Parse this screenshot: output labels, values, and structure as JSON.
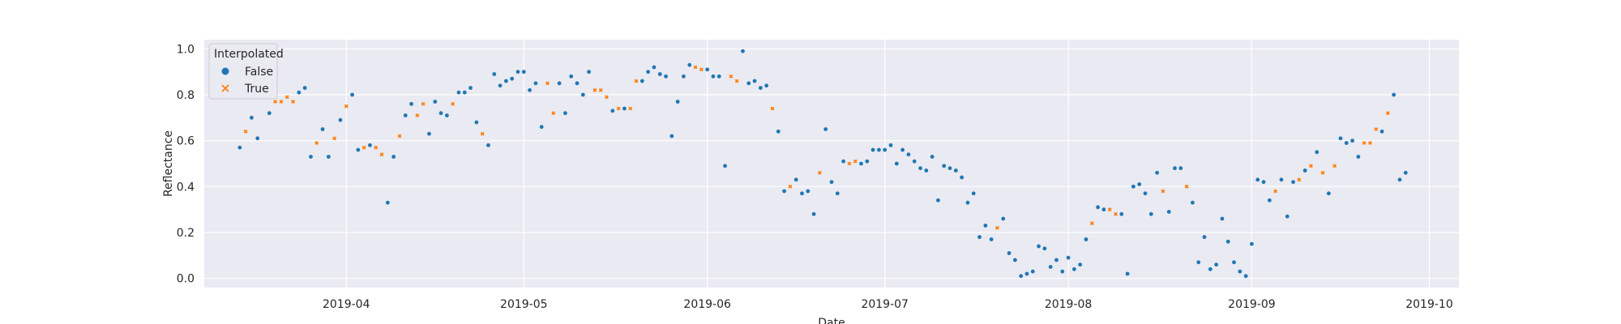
{
  "chart_data": {
    "type": "scatter",
    "xlabel": "Date",
    "ylabel": "Reflectance",
    "xlim": [
      "2019-03-08",
      "2019-10-06"
    ],
    "ylim": [
      -0.04,
      1.04
    ],
    "x_ticks": [
      "2019-04-01",
      "2019-05-01",
      "2019-06-01",
      "2019-07-01",
      "2019-08-01",
      "2019-09-01",
      "2019-10-01"
    ],
    "x_tick_labels": [
      "2019-04",
      "2019-05",
      "2019-06",
      "2019-07",
      "2019-08",
      "2019-09",
      "2019-10"
    ],
    "y_ticks": [
      0.0,
      0.2,
      0.4,
      0.6,
      0.8,
      1.0
    ],
    "y_tick_labels": [
      "0.0",
      "0.2",
      "0.4",
      "0.6",
      "0.8",
      "1.0"
    ],
    "grid": true,
    "legend": {
      "title": "Interpolated",
      "placement": "top-left",
      "entries": [
        {
          "label": "False",
          "marker": "circle",
          "color": "#1f77b4"
        },
        {
          "label": "True",
          "marker": "x",
          "color": "#ff7f0e"
        }
      ]
    },
    "series": [
      {
        "name": "False",
        "color": "#1f77b4",
        "marker": "circle",
        "points": [
          [
            "2019-03-14",
            0.57
          ],
          [
            "2019-03-16",
            0.7
          ],
          [
            "2019-03-17",
            0.61
          ],
          [
            "2019-03-18",
            0.8
          ],
          [
            "2019-03-19",
            0.72
          ],
          [
            "2019-03-24",
            0.81
          ],
          [
            "2019-03-25",
            0.83
          ],
          [
            "2019-03-26",
            0.53
          ],
          [
            "2019-03-28",
            0.65
          ],
          [
            "2019-03-29",
            0.53
          ],
          [
            "2019-03-31",
            0.69
          ],
          [
            "2019-04-02",
            0.8
          ],
          [
            "2019-04-03",
            0.56
          ],
          [
            "2019-04-05",
            0.58
          ],
          [
            "2019-04-08",
            0.33
          ],
          [
            "2019-04-09",
            0.53
          ],
          [
            "2019-04-11",
            0.71
          ],
          [
            "2019-04-12",
            0.76
          ],
          [
            "2019-04-15",
            0.63
          ],
          [
            "2019-04-16",
            0.77
          ],
          [
            "2019-04-17",
            0.72
          ],
          [
            "2019-04-18",
            0.71
          ],
          [
            "2019-04-20",
            0.81
          ],
          [
            "2019-04-21",
            0.81
          ],
          [
            "2019-04-22",
            0.83
          ],
          [
            "2019-04-23",
            0.68
          ],
          [
            "2019-04-25",
            0.58
          ],
          [
            "2019-04-26",
            0.89
          ],
          [
            "2019-04-27",
            0.84
          ],
          [
            "2019-04-28",
            0.86
          ],
          [
            "2019-04-29",
            0.87
          ],
          [
            "2019-04-30",
            0.9
          ],
          [
            "2019-05-01",
            0.9
          ],
          [
            "2019-05-02",
            0.82
          ],
          [
            "2019-05-03",
            0.85
          ],
          [
            "2019-05-04",
            0.66
          ],
          [
            "2019-05-07",
            0.85
          ],
          [
            "2019-05-08",
            0.72
          ],
          [
            "2019-05-09",
            0.88
          ],
          [
            "2019-05-10",
            0.85
          ],
          [
            "2019-05-11",
            0.8
          ],
          [
            "2019-05-12",
            0.9
          ],
          [
            "2019-05-16",
            0.73
          ],
          [
            "2019-05-18",
            0.74
          ],
          [
            "2019-05-21",
            0.86
          ],
          [
            "2019-05-22",
            0.9
          ],
          [
            "2019-05-23",
            0.92
          ],
          [
            "2019-05-24",
            0.89
          ],
          [
            "2019-05-25",
            0.88
          ],
          [
            "2019-05-26",
            0.62
          ],
          [
            "2019-05-27",
            0.77
          ],
          [
            "2019-05-28",
            0.88
          ],
          [
            "2019-05-29",
            0.93
          ],
          [
            "2019-06-01",
            0.91
          ],
          [
            "2019-06-02",
            0.88
          ],
          [
            "2019-06-03",
            0.88
          ],
          [
            "2019-06-04",
            0.49
          ],
          [
            "2019-06-07",
            0.99
          ],
          [
            "2019-06-08",
            0.85
          ],
          [
            "2019-06-09",
            0.86
          ],
          [
            "2019-06-10",
            0.83
          ],
          [
            "2019-06-11",
            0.84
          ],
          [
            "2019-06-13",
            0.64
          ],
          [
            "2019-06-14",
            0.38
          ],
          [
            "2019-06-16",
            0.43
          ],
          [
            "2019-06-17",
            0.37
          ],
          [
            "2019-06-18",
            0.38
          ],
          [
            "2019-06-19",
            0.28
          ],
          [
            "2019-06-21",
            0.65
          ],
          [
            "2019-06-22",
            0.42
          ],
          [
            "2019-06-23",
            0.37
          ],
          [
            "2019-06-24",
            0.51
          ],
          [
            "2019-06-27",
            0.5
          ],
          [
            "2019-06-28",
            0.51
          ],
          [
            "2019-06-29",
            0.56
          ],
          [
            "2019-06-30",
            0.56
          ],
          [
            "2019-07-01",
            0.56
          ],
          [
            "2019-07-02",
            0.58
          ],
          [
            "2019-07-03",
            0.5
          ],
          [
            "2019-07-04",
            0.56
          ],
          [
            "2019-07-05",
            0.54
          ],
          [
            "2019-07-06",
            0.51
          ],
          [
            "2019-07-07",
            0.48
          ],
          [
            "2019-07-08",
            0.47
          ],
          [
            "2019-07-09",
            0.53
          ],
          [
            "2019-07-10",
            0.34
          ],
          [
            "2019-07-11",
            0.49
          ],
          [
            "2019-07-12",
            0.48
          ],
          [
            "2019-07-13",
            0.47
          ],
          [
            "2019-07-14",
            0.44
          ],
          [
            "2019-07-15",
            0.33
          ],
          [
            "2019-07-16",
            0.37
          ],
          [
            "2019-07-17",
            0.18
          ],
          [
            "2019-07-18",
            0.23
          ],
          [
            "2019-07-19",
            0.17
          ],
          [
            "2019-07-21",
            0.26
          ],
          [
            "2019-07-22",
            0.11
          ],
          [
            "2019-07-23",
            0.08
          ],
          [
            "2019-07-24",
            0.01
          ],
          [
            "2019-07-25",
            0.02
          ],
          [
            "2019-07-26",
            0.03
          ],
          [
            "2019-07-27",
            0.14
          ],
          [
            "2019-07-28",
            0.13
          ],
          [
            "2019-07-29",
            0.05
          ],
          [
            "2019-07-30",
            0.08
          ],
          [
            "2019-07-31",
            0.03
          ],
          [
            "2019-08-01",
            0.09
          ],
          [
            "2019-08-02",
            0.04
          ],
          [
            "2019-08-03",
            0.06
          ],
          [
            "2019-08-04",
            0.17
          ],
          [
            "2019-08-06",
            0.31
          ],
          [
            "2019-08-07",
            0.3
          ],
          [
            "2019-08-10",
            0.28
          ],
          [
            "2019-08-11",
            0.02
          ],
          [
            "2019-08-12",
            0.4
          ],
          [
            "2019-08-13",
            0.41
          ],
          [
            "2019-08-14",
            0.37
          ],
          [
            "2019-08-15",
            0.28
          ],
          [
            "2019-08-16",
            0.46
          ],
          [
            "2019-08-18",
            0.29
          ],
          [
            "2019-08-19",
            0.48
          ],
          [
            "2019-08-20",
            0.48
          ],
          [
            "2019-08-22",
            0.33
          ],
          [
            "2019-08-23",
            0.07
          ],
          [
            "2019-08-24",
            0.18
          ],
          [
            "2019-08-25",
            0.04
          ],
          [
            "2019-08-26",
            0.06
          ],
          [
            "2019-08-27",
            0.26
          ],
          [
            "2019-08-28",
            0.16
          ],
          [
            "2019-08-29",
            0.07
          ],
          [
            "2019-08-30",
            0.03
          ],
          [
            "2019-08-31",
            0.01
          ],
          [
            "2019-09-01",
            0.15
          ],
          [
            "2019-09-02",
            0.43
          ],
          [
            "2019-09-03",
            0.42
          ],
          [
            "2019-09-04",
            0.34
          ],
          [
            "2019-09-06",
            0.43
          ],
          [
            "2019-09-07",
            0.27
          ],
          [
            "2019-09-08",
            0.42
          ],
          [
            "2019-09-10",
            0.47
          ],
          [
            "2019-09-12",
            0.55
          ],
          [
            "2019-09-14",
            0.37
          ],
          [
            "2019-09-16",
            0.61
          ],
          [
            "2019-09-17",
            0.59
          ],
          [
            "2019-09-18",
            0.6
          ],
          [
            "2019-09-19",
            0.53
          ],
          [
            "2019-09-23",
            0.64
          ],
          [
            "2019-09-25",
            0.8
          ],
          [
            "2019-09-26",
            0.43
          ],
          [
            "2019-09-27",
            0.46
          ]
        ]
      },
      {
        "name": "True",
        "color": "#ff7f0e",
        "marker": "x",
        "points": [
          [
            "2019-03-15",
            0.64
          ],
          [
            "2019-03-20",
            0.77
          ],
          [
            "2019-03-21",
            0.77
          ],
          [
            "2019-03-22",
            0.79
          ],
          [
            "2019-03-23",
            0.77
          ],
          [
            "2019-03-27",
            0.59
          ],
          [
            "2019-03-30",
            0.61
          ],
          [
            "2019-04-01",
            0.75
          ],
          [
            "2019-04-04",
            0.57
          ],
          [
            "2019-04-06",
            0.57
          ],
          [
            "2019-04-07",
            0.54
          ],
          [
            "2019-04-10",
            0.62
          ],
          [
            "2019-04-13",
            0.71
          ],
          [
            "2019-04-14",
            0.76
          ],
          [
            "2019-04-19",
            0.76
          ],
          [
            "2019-04-24",
            0.63
          ],
          [
            "2019-05-05",
            0.85
          ],
          [
            "2019-05-06",
            0.72
          ],
          [
            "2019-05-13",
            0.82
          ],
          [
            "2019-05-14",
            0.82
          ],
          [
            "2019-05-15",
            0.79
          ],
          [
            "2019-05-17",
            0.74
          ],
          [
            "2019-05-19",
            0.74
          ],
          [
            "2019-05-20",
            0.86
          ],
          [
            "2019-05-30",
            0.92
          ],
          [
            "2019-05-31",
            0.91
          ],
          [
            "2019-06-05",
            0.88
          ],
          [
            "2019-06-06",
            0.86
          ],
          [
            "2019-06-12",
            0.74
          ],
          [
            "2019-06-15",
            0.4
          ],
          [
            "2019-06-20",
            0.46
          ],
          [
            "2019-06-25",
            0.5
          ],
          [
            "2019-06-26",
            0.51
          ],
          [
            "2019-07-20",
            0.22
          ],
          [
            "2019-08-05",
            0.24
          ],
          [
            "2019-08-08",
            0.3
          ],
          [
            "2019-08-09",
            0.28
          ],
          [
            "2019-08-17",
            0.38
          ],
          [
            "2019-08-21",
            0.4
          ],
          [
            "2019-09-05",
            0.38
          ],
          [
            "2019-09-09",
            0.43
          ],
          [
            "2019-09-11",
            0.49
          ],
          [
            "2019-09-13",
            0.46
          ],
          [
            "2019-09-15",
            0.49
          ],
          [
            "2019-09-20",
            0.59
          ],
          [
            "2019-09-21",
            0.59
          ],
          [
            "2019-09-22",
            0.65
          ],
          [
            "2019-09-24",
            0.72
          ]
        ]
      }
    ]
  }
}
